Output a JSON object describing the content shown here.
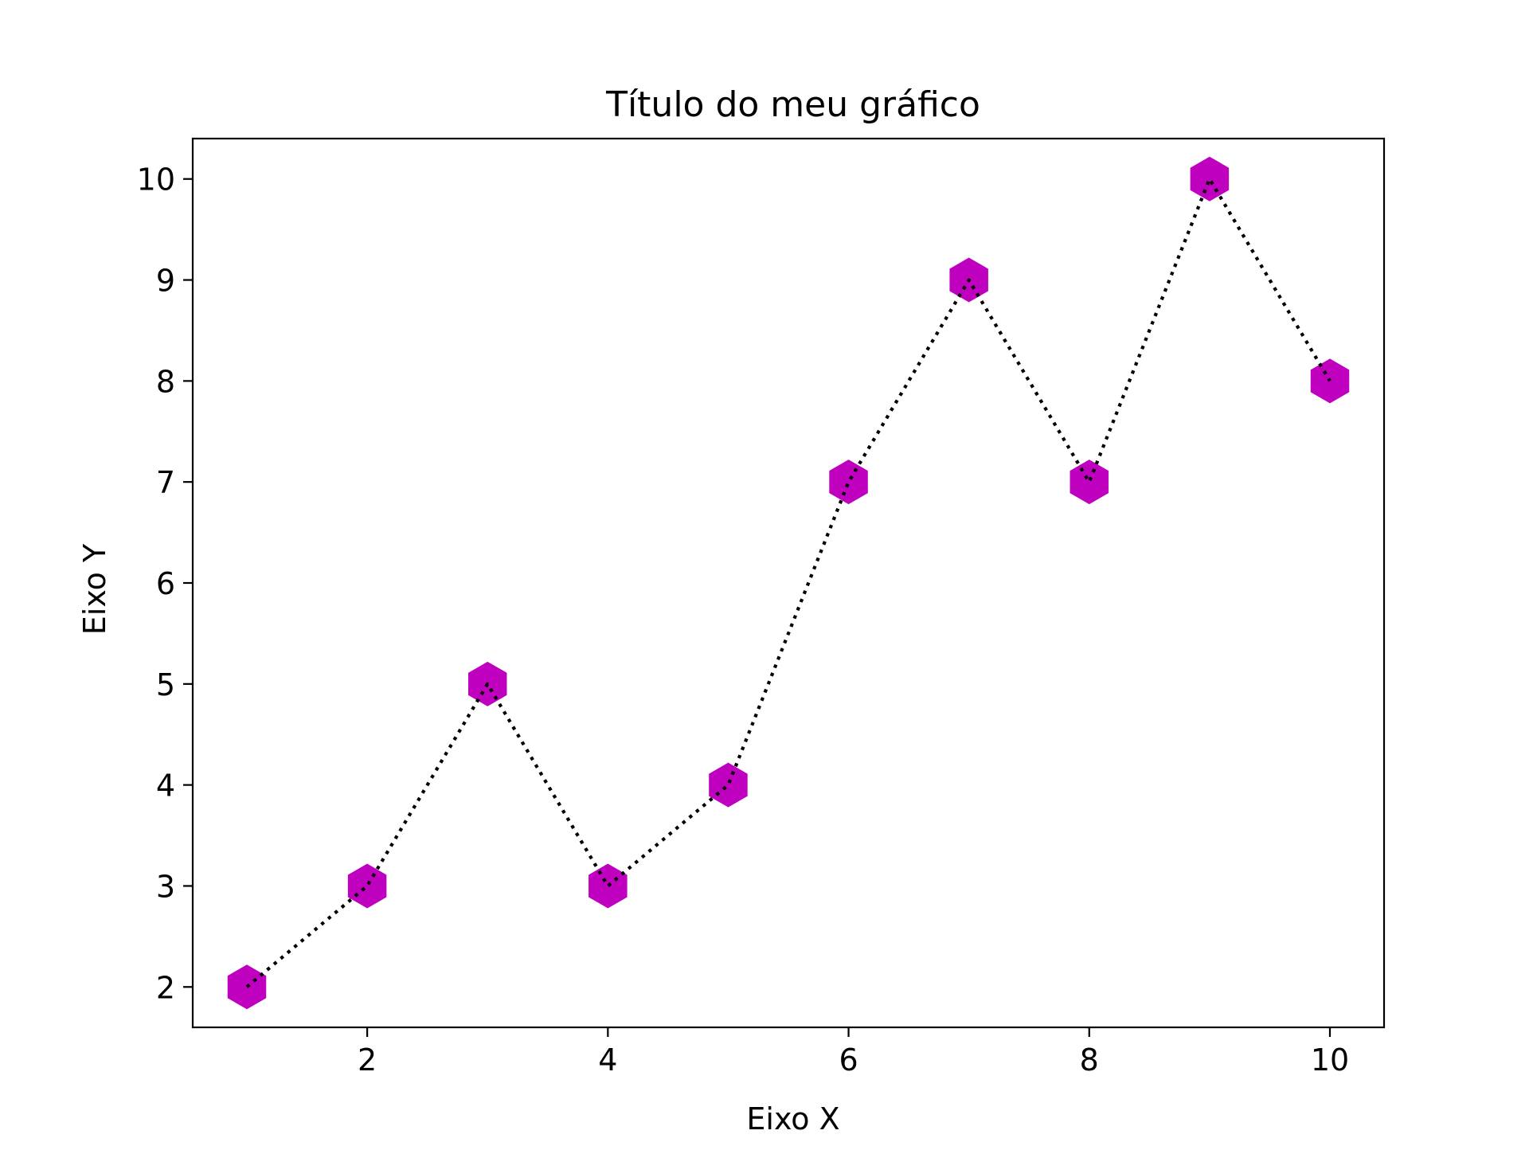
{
  "chart_data": {
    "type": "line",
    "title": "Título do meu gráfico",
    "xlabel": "Eixo X",
    "ylabel": "Eixo Y",
    "x": [
      1,
      2,
      3,
      4,
      5,
      6,
      7,
      8,
      9,
      10
    ],
    "series": [
      {
        "values": [
          2,
          3,
          5,
          3,
          4,
          7,
          9,
          7,
          10,
          8
        ],
        "marker": "hexagon",
        "marker_color": "#bf00bf",
        "line_style": "dotted",
        "line_color": "#000000"
      }
    ],
    "xlim": [
      0.55,
      10.45
    ],
    "ylim": [
      1.6,
      10.4
    ],
    "xticks": [
      2,
      4,
      6,
      8,
      10
    ],
    "yticks": [
      2,
      3,
      4,
      5,
      6,
      7,
      8,
      9,
      10
    ],
    "grid": false,
    "legend": false
  }
}
